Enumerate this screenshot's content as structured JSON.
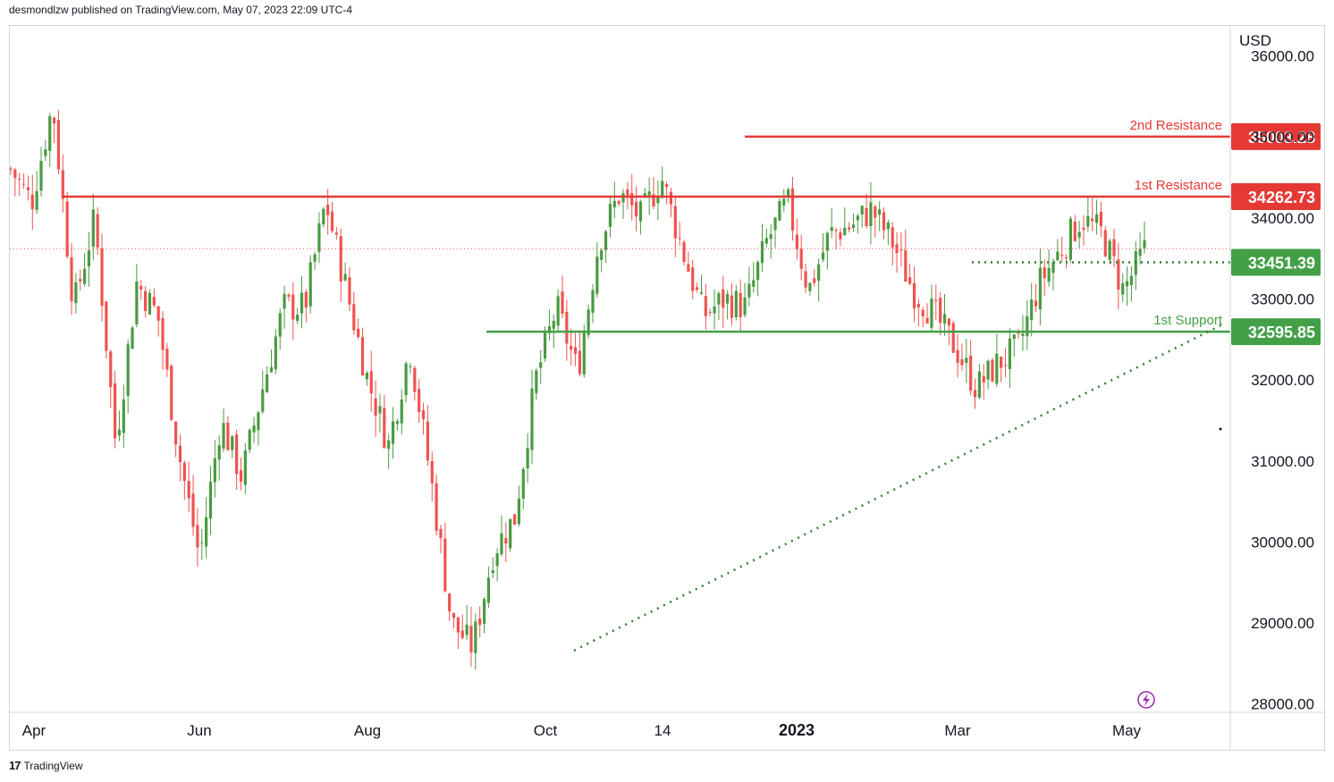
{
  "header": {
    "published": "desmondlzw published on TradingView.com, May 07, 2023 22:09 UTC-4"
  },
  "footer": {
    "brand": "TradingView",
    "brand_mark": "17"
  },
  "colors": {
    "up": "#4a9a42",
    "down": "#ef5350",
    "resistance": "#e53935",
    "support": "#43a047",
    "trend": "#2e7d32",
    "grid": "#d1d4dc"
  },
  "chart_data": {
    "type": "candlestick",
    "title": "",
    "currency": "USD",
    "y_axis": {
      "ticks": [
        "28000.00",
        "29000.00",
        "30000.00",
        "31000.00",
        "32000.00",
        "33000.00",
        "34000.00",
        "35000.00",
        "36000.00"
      ],
      "ylim": [
        27820,
        36370
      ]
    },
    "x_axis": {
      "labels": [
        "Apr",
        "Jun",
        "Aug",
        "Oct",
        "14",
        "2023",
        "Mar",
        "May"
      ]
    },
    "levels": [
      {
        "label": "2nd Resistance",
        "value": 35003.28,
        "badge": "35003.28",
        "kind": "resistance",
        "from": "Nov 2022"
      },
      {
        "label": "1st Resistance",
        "value": 34262.73,
        "badge": "34262.73",
        "kind": "resistance",
        "from": "Apr 2022"
      },
      {
        "label": "",
        "value": 33451.39,
        "badge": "33451.39",
        "kind": "pivot",
        "from": "Mar 2023"
      },
      {
        "label": "1st Support",
        "value": 32595.85,
        "badge": "32595.85",
        "kind": "support",
        "from": "Sep 2022"
      }
    ],
    "trendline": {
      "from": [
        "Oct 2022",
        28660
      ],
      "to": [
        "May 2023",
        32700
      ]
    },
    "swing_points": [
      {
        "date": "Apr 2022",
        "close": 34600
      },
      {
        "date": "Apr 2022",
        "close": 34200
      },
      {
        "date": "Apr 2022",
        "close": 35400
      },
      {
        "date": "May 2022",
        "close": 32900
      },
      {
        "date": "May 2022",
        "close": 34000
      },
      {
        "date": "May 2022",
        "close": 31200
      },
      {
        "date": "Jun 2022",
        "close": 33200
      },
      {
        "date": "Jun 2022",
        "close": 32800
      },
      {
        "date": "Jun 2022",
        "close": 31100
      },
      {
        "date": "Jun 2022",
        "close": 29800
      },
      {
        "date": "Jul 2022",
        "close": 31500
      },
      {
        "date": "Jul 2022",
        "close": 30800
      },
      {
        "date": "Jul 2022",
        "close": 31900
      },
      {
        "date": "Jul 2022",
        "close": 32900
      },
      {
        "date": "Aug 2022",
        "close": 32900
      },
      {
        "date": "Aug 2022",
        "close": 34200
      },
      {
        "date": "Aug 2022",
        "close": 33100
      },
      {
        "date": "Sep 2022",
        "close": 32000
      },
      {
        "date": "Sep 2022",
        "close": 31200
      },
      {
        "date": "Sep 2022",
        "close": 32400
      },
      {
        "date": "Sep 2022",
        "close": 30800
      },
      {
        "date": "Oct 2022",
        "close": 29000
      },
      {
        "date": "Oct 2022",
        "close": 28700
      },
      {
        "date": "Oct 2022",
        "close": 29900
      },
      {
        "date": "Oct 2022",
        "close": 30300
      },
      {
        "date": "Oct 2022",
        "close": 32000
      },
      {
        "date": "Oct 2022",
        "close": 32900
      },
      {
        "date": "Nov 2022",
        "close": 32100
      },
      {
        "date": "Nov 2022",
        "close": 33700
      },
      {
        "date": "Nov 2022",
        "close": 34300
      },
      {
        "date": "Nov 2022",
        "close": 34000
      },
      {
        "date": "Nov 2022",
        "close": 34500
      },
      {
        "date": "Dec 2022",
        "close": 33600
      },
      {
        "date": "Dec 2022",
        "close": 32800
      },
      {
        "date": "Dec 2022",
        "close": 33000
      },
      {
        "date": "Dec 2022",
        "close": 32900
      },
      {
        "date": "Jan 2023",
        "close": 33700
      },
      {
        "date": "Jan 2023",
        "close": 34200
      },
      {
        "date": "Jan 2023",
        "close": 33100
      },
      {
        "date": "Jan 2023",
        "close": 33800
      },
      {
        "date": "Feb 2023",
        "close": 33900
      },
      {
        "date": "Feb 2023",
        "close": 34100
      },
      {
        "date": "Feb 2023",
        "close": 33700
      },
      {
        "date": "Feb 2023",
        "close": 33100
      },
      {
        "date": "Mar 2023",
        "close": 32800
      },
      {
        "date": "Mar 2023",
        "close": 32400
      },
      {
        "date": "Mar 2023",
        "close": 31900
      },
      {
        "date": "Mar 2023",
        "close": 32200
      },
      {
        "date": "Mar 2023",
        "close": 32400
      },
      {
        "date": "Apr 2023",
        "close": 33200
      },
      {
        "date": "Apr 2023",
        "close": 33600
      },
      {
        "date": "Apr 2023",
        "close": 34000
      },
      {
        "date": "Apr 2023",
        "close": 33800
      },
      {
        "date": "May 2023",
        "close": 33100
      },
      {
        "date": "May 2023",
        "close": 33600
      }
    ]
  }
}
